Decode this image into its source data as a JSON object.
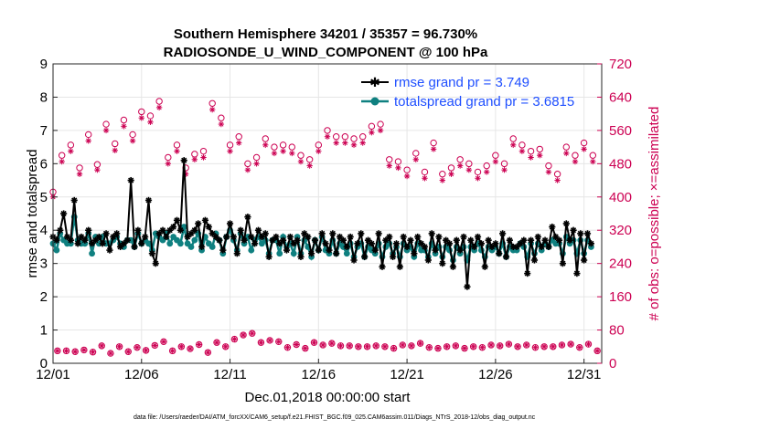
{
  "chart_data": {
    "type": "line",
    "title": "Southern Hemisphere 34201 / 35357 = 96.730%",
    "subtitle": "RADIOSONDE_U_WIND_COMPONENT @ 100 hPa",
    "xlabel": "Dec.01,2018 00:00:00 start",
    "ylabel": "rmse and totalspread",
    "ylabel_right": "# of obs: o=possible; ×=assimilated",
    "footnote": "data file: /Users/raeder/DAI/ATM_forcXX/CAM6_setup/f.e21.FHIST_BGC.f09_025.CAM6assim.011/Diags_NTrS_2018-12/obs_diag_output.nc",
    "x_ticks": [
      "12/01",
      "12/06",
      "12/11",
      "12/16",
      "12/21",
      "12/26",
      "12/31"
    ],
    "x_tick_days": [
      0,
      5,
      10,
      15,
      20,
      25,
      30
    ],
    "xlim": [
      0,
      31
    ],
    "ylim": [
      0,
      9
    ],
    "y_ticks": [
      "0",
      "1",
      "2",
      "3",
      "4",
      "5",
      "6",
      "7",
      "8",
      "9"
    ],
    "ylim_right": [
      0,
      720
    ],
    "y_ticks_right": [
      "0",
      "80",
      "160",
      "240",
      "320",
      "400",
      "480",
      "560",
      "640",
      "720"
    ],
    "colors": {
      "rmse": "#000000",
      "spread": "#0f8080",
      "obs": "#cc0052",
      "legend_text": "#1f4fff"
    },
    "series": [
      {
        "name": "rmse grand pr = 3.749",
        "marker": "star",
        "values": [
          3.8,
          3.7,
          4.0,
          4.5,
          3.8,
          3.7,
          4.9,
          3.6,
          3.8,
          3.7,
          4.0,
          3.6,
          3.7,
          3.8,
          3.6,
          3.9,
          3.4,
          3.8,
          3.9,
          3.5,
          3.6,
          3.7,
          5.5,
          3.5,
          4.0,
          3.6,
          3.8,
          4.9,
          3.3,
          3.0,
          3.9,
          4.0,
          3.8,
          4.0,
          4.1,
          4.3,
          4.0,
          6.1,
          3.8,
          3.9,
          4.0,
          4.2,
          3.5,
          4.3,
          4.1,
          3.9,
          3.8,
          3.7,
          3.4,
          3.8,
          4.2,
          3.8,
          3.3,
          4.0,
          3.7,
          4.4,
          3.8,
          3.6,
          4.0,
          3.8,
          3.9,
          3.2,
          3.7,
          3.8,
          3.6,
          3.7,
          3.4,
          3.8,
          3.6,
          3.7,
          3.2,
          3.9,
          3.8,
          3.3,
          3.7,
          3.4,
          3.9,
          3.6,
          3.4,
          3.9,
          3.3,
          3.8,
          3.7,
          3.5,
          3.8,
          3.1,
          3.6,
          3.9,
          3.2,
          3.7,
          3.6,
          3.4,
          3.9,
          2.9,
          3.7,
          3.8,
          3.2,
          3.6,
          2.9,
          3.8,
          3.5,
          3.7,
          3.3,
          3.8,
          3.6,
          3.5,
          3.1,
          3.9,
          3.4,
          3.8,
          3.0,
          3.7,
          3.6,
          2.9,
          3.7,
          3.4,
          3.8,
          2.3,
          3.7,
          3.5,
          3.8,
          3.6,
          2.9,
          3.7,
          3.5,
          3.6,
          3.3,
          3.9,
          3.2,
          3.7,
          3.5,
          3.5,
          3.6,
          3.7,
          2.7,
          3.7,
          3.1,
          3.8,
          3.5,
          3.7,
          3.5,
          4.1,
          3.8,
          3.7,
          3.0,
          4.2,
          3.7,
          4.0,
          2.7,
          3.9,
          3.1,
          3.9,
          3.6
        ],
        "marker_values_note": "x = day index = i/5"
      },
      {
        "name": "totalspread grand pr = 3.6815",
        "marker": "circle-filled",
        "values": [
          3.6,
          3.4,
          3.9,
          3.7,
          3.6,
          3.6,
          4.4,
          3.7,
          3.6,
          3.6,
          3.9,
          3.3,
          3.8,
          3.6,
          3.8,
          3.6,
          3.6,
          3.7,
          3.8,
          3.6,
          3.5,
          3.7,
          3.7,
          3.5,
          3.9,
          3.6,
          3.7,
          3.6,
          3.4,
          3.9,
          3.8,
          3.7,
          3.9,
          3.6,
          3.8,
          3.7,
          3.6,
          4.1,
          3.6,
          3.5,
          3.7,
          3.9,
          3.4,
          3.8,
          3.6,
          3.5,
          3.9,
          3.7,
          3.3,
          3.8,
          4.0,
          3.7,
          3.4,
          3.9,
          3.6,
          3.8,
          3.4,
          3.7,
          3.8,
          3.6,
          3.7,
          3.3,
          3.7,
          3.7,
          3.3,
          3.8,
          3.5,
          3.6,
          3.3,
          3.8,
          3.3,
          3.7,
          3.5,
          3.2,
          3.7,
          3.4,
          3.8,
          3.4,
          3.3,
          3.7,
          3.3,
          3.6,
          3.5,
          3.3,
          3.6,
          3.2,
          3.5,
          3.6,
          3.2,
          3.5,
          3.4,
          3.3,
          3.6,
          3.2,
          3.5,
          3.6,
          3.3,
          3.5,
          3.2,
          3.6,
          3.4,
          3.5,
          3.2,
          3.6,
          3.4,
          3.4,
          3.2,
          3.6,
          3.3,
          3.5,
          3.2,
          3.5,
          3.4,
          3.1,
          3.5,
          3.3,
          3.5,
          3.1,
          3.5,
          3.4,
          3.6,
          3.4,
          3.2,
          3.5,
          3.4,
          3.5,
          3.3,
          3.6,
          3.2,
          3.5,
          3.4,
          3.4,
          3.6,
          3.5,
          3.2,
          3.6,
          3.3,
          3.6,
          3.4,
          3.6,
          3.5,
          3.7,
          3.6,
          3.6,
          3.3,
          3.8,
          3.6,
          3.7,
          3.3,
          3.7,
          3.3,
          3.7,
          3.5
        ]
      }
    ],
    "obs_counts": {
      "daily_possible_high": [
        412,
        500,
        525,
        470,
        550,
        478,
        575,
        528,
        585,
        550,
        605,
        595,
        630,
        495,
        525,
        470,
        503,
        510,
        625,
        590,
        525,
        545,
        480,
        495,
        540,
        520,
        525,
        520,
        500,
        490,
        525,
        560,
        545,
        545,
        540,
        545,
        570,
        575,
        490,
        485,
        465,
        505,
        460,
        530,
        455,
        470,
        490,
        480,
        460,
        475,
        500,
        480,
        540,
        525,
        510,
        515,
        475,
        455,
        520,
        500,
        530,
        500
      ],
      "daily_assimilated_high": [
        400,
        485,
        510,
        455,
        535,
        465,
        560,
        512,
        570,
        535,
        590,
        580,
        615,
        480,
        510,
        455,
        490,
        495,
        610,
        575,
        510,
        530,
        465,
        480,
        525,
        505,
        510,
        505,
        485,
        475,
        510,
        545,
        530,
        530,
        525,
        530,
        555,
        560,
        475,
        470,
        450,
        490,
        445,
        515,
        440,
        455,
        475,
        465,
        445,
        460,
        485,
        465,
        525,
        510,
        495,
        500,
        460,
        440,
        505,
        485,
        515,
        485
      ],
      "daily_possible_low": [
        30,
        30,
        28,
        32,
        27,
        42,
        24,
        40,
        28,
        38,
        31,
        43,
        52,
        30,
        40,
        35,
        45,
        26,
        50,
        40,
        58,
        68,
        72,
        50,
        55,
        52,
        38,
        45,
        36,
        50,
        44,
        48,
        42,
        42,
        40,
        40,
        42,
        40,
        36,
        44,
        42,
        48,
        38,
        36,
        40,
        42,
        36,
        40,
        38,
        44,
        42,
        46,
        40,
        44,
        38,
        40,
        40,
        44,
        46,
        38,
        46,
        30
      ],
      "note": "two observation times per day (00Z high counts, 12Z low counts); x = day index = j/2"
    }
  }
}
